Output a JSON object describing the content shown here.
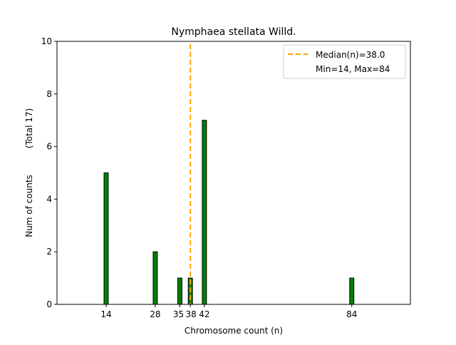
{
  "chart_data": {
    "type": "bar",
    "title": "Nymphaea stellata Willd.",
    "xlabel": "Chromosome count (n)",
    "ylabel": "Num of counts",
    "ylabel_total": "(Total 17)",
    "x": [
      14,
      28,
      35,
      38,
      42,
      84
    ],
    "values": [
      5,
      2,
      1,
      1,
      7,
      1
    ],
    "xticks": [
      14,
      28,
      35,
      38,
      42,
      84
    ],
    "xtick_labels": [
      "14",
      "28",
      "35",
      "38",
      "42",
      "84"
    ],
    "yticks": [
      0,
      2,
      4,
      6,
      8,
      10
    ],
    "xlim": [
      0,
      100.7
    ],
    "ylim": [
      0,
      10
    ],
    "bar_width": 1.2,
    "median": 38.0,
    "legend": {
      "placement": "top-right",
      "entries": [
        "Median(n)=38.0",
        "Min=14, Max=84"
      ]
    },
    "colors": {
      "bar": "#008000",
      "bar_edge": "#000000",
      "median": "#ffa500"
    },
    "grid": false
  }
}
